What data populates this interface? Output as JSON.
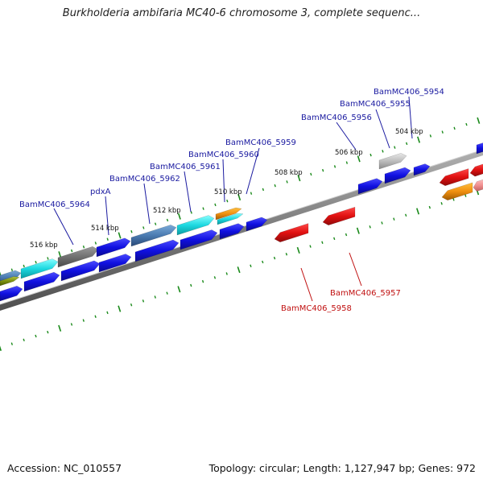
{
  "title": "Burkholderia ambifaria MC40-6 chromosome 3, complete sequenc...",
  "footer": {
    "accession": "Accession: NC_010557",
    "summary": "Topology: circular; Length: 1,127,947 bp; Genes: 972"
  },
  "colors": {
    "forward_gene": "#1010e0",
    "reverse_gene": "#e01010",
    "backbone": "#7a7a7a",
    "ticks": "#1a8a1a",
    "forward_label": "#1a1aa0",
    "reverse_label": "#c01010"
  },
  "ticks": [
    {
      "label": "516 kbp"
    },
    {
      "label": "514 kbp"
    },
    {
      "label": "512 kbp"
    },
    {
      "label": "510 kbp"
    },
    {
      "label": "508 kbp"
    },
    {
      "label": "506 kbp"
    },
    {
      "label": "504 kbp"
    }
  ],
  "forward_labels": [
    {
      "text": "BamMC406_5964"
    },
    {
      "text": "pdxA"
    },
    {
      "text": "BamMC406_5962"
    },
    {
      "text": "BamMC406_5961"
    },
    {
      "text": "BamMC406_5960"
    },
    {
      "text": "BamMC406_5959"
    },
    {
      "text": "BamMC406_5956"
    },
    {
      "text": "BamMC406_5955"
    },
    {
      "text": "BamMC406_5954"
    }
  ],
  "reverse_labels": [
    {
      "text": "BamMC406_5957"
    },
    {
      "text": "BamMC406_5958"
    }
  ]
}
